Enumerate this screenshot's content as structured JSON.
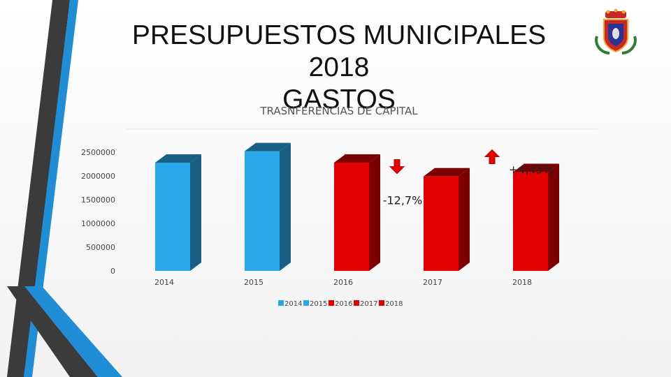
{
  "slide": {
    "title_line1": "PRESUPUESTOS MUNICIPALES 2018",
    "title_line2": "GASTOS",
    "colors": {
      "blue": "#2aa7e8",
      "blue_side": "#1a5f86",
      "red": "#e50000",
      "red_side": "#7d0000",
      "deco_dark": "#3b3b3b",
      "deco_blue": "#1f8ed6"
    }
  },
  "chart_data": {
    "type": "bar",
    "title": "TRASNFERENCIAS DE CAPITAL",
    "categories": [
      "2014",
      "2015",
      "2016",
      "2017",
      "2018"
    ],
    "values": [
      2280000,
      2520000,
      2280000,
      1990000,
      2080000
    ],
    "bar_colors": [
      "#2aa7e8",
      "#2aa7e8",
      "#e50000",
      "#e50000",
      "#e50000"
    ],
    "side_colors": [
      "#1a5f86",
      "#1a5f86",
      "#7d0000",
      "#7d0000",
      "#7d0000"
    ],
    "yticks": [
      0,
      500000,
      1000000,
      1500000,
      2000000,
      2500000
    ],
    "ytick_labels": [
      "0",
      "500000",
      "1000000",
      "1500000",
      "2000000",
      "2500000"
    ],
    "ylim": [
      0,
      2800000
    ],
    "legend": [
      "2014",
      "2015",
      "2016",
      "2017",
      "2018"
    ],
    "legend_position": "bottom",
    "annotations": [
      {
        "label": "-12,7%",
        "category": "2017",
        "arrow": "down"
      },
      {
        "label": "+4,45%",
        "category": "2018",
        "arrow": "up"
      }
    ]
  }
}
